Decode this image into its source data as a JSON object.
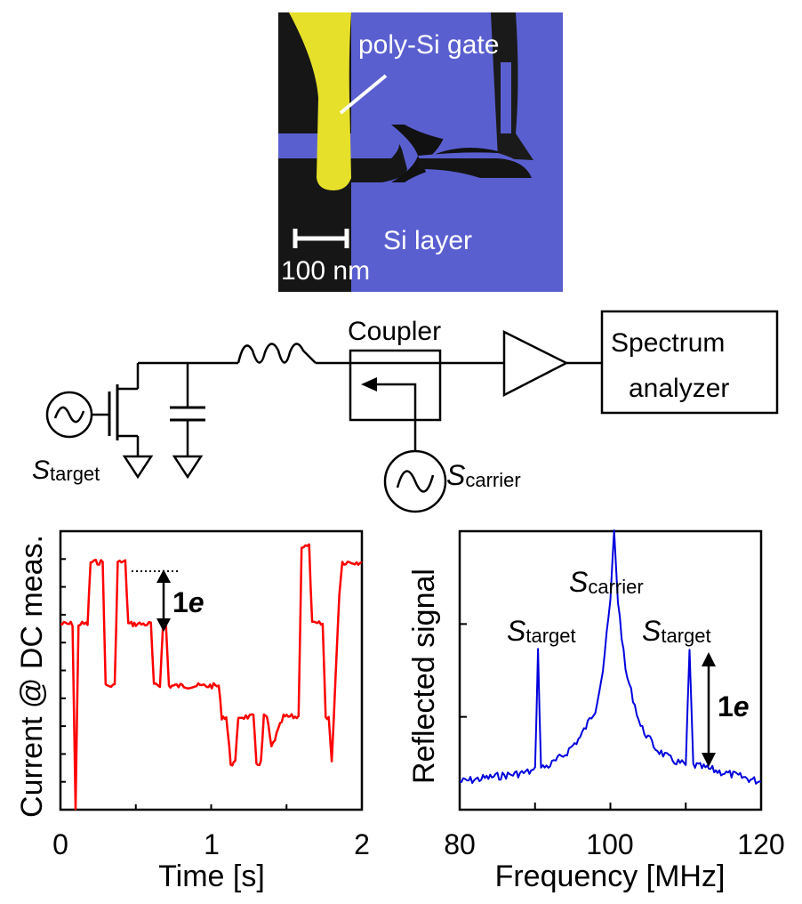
{
  "sem": {
    "gate_label": "poly-Si gate",
    "layer_label": "Si layer",
    "scale_label": "100 nm",
    "gate_color": "#e6e02a",
    "layer_color": "#5a5fd0"
  },
  "circuit": {
    "coupler_label": "Coupler",
    "analyzer_line1": "Spectrum",
    "analyzer_line2": "analyzer",
    "s_target": "S",
    "s_target_sub": "target",
    "s_carrier": "S",
    "s_carrier_sub": "carrier"
  },
  "left_plot": {
    "ylabel": "Current @ DC meas.",
    "xlabel": "Time [s]",
    "annotation": "1",
    "annotation_unit": "e",
    "line_color": "#ff0000"
  },
  "right_plot": {
    "ylabel": "Reflected signal",
    "xlabel": "Frequency [MHz]",
    "peak_carrier_label": "S",
    "peak_carrier_sub": "carrier",
    "peak_left_label": "S",
    "peak_left_sub": "target",
    "peak_right_label": "S",
    "peak_right_sub": "target",
    "annotation": "1",
    "annotation_unit": "e",
    "line_color": "#0000dd"
  },
  "chart_data": [
    {
      "type": "line",
      "title": "",
      "xlabel": "Time [s]",
      "ylabel": "Current @ DC meas.",
      "xlim": [
        0,
        2
      ],
      "xticks": [
        "0",
        "1",
        "2"
      ],
      "ylim": [
        0,
        9
      ],
      "series": [
        {
          "x": [
            0,
            0.08,
            0.1,
            0.12,
            0.18,
            0.2,
            0.28,
            0.3,
            0.36,
            0.38,
            0.43,
            0.45,
            0.48,
            0.5,
            0.6,
            0.62,
            0.66,
            0.68,
            0.7,
            0.72,
            0.74,
            0.76,
            0.95,
            0.97,
            1.05,
            1.07,
            1.1,
            1.13,
            1.16,
            1.18,
            1.28,
            1.3,
            1.33,
            1.35,
            1.37,
            1.4,
            1.48,
            1.5,
            1.58,
            1.6,
            1.65,
            1.67,
            1.74,
            1.76,
            1.78,
            1.8,
            1.85,
            1.87,
            2.0
          ],
          "y": [
            6,
            6,
            0,
            6,
            6,
            8,
            8,
            4,
            4,
            8,
            8,
            6,
            6,
            6,
            6,
            4,
            4,
            6,
            6,
            4,
            4,
            4,
            4,
            4,
            4,
            3,
            3,
            1.5,
            1.5,
            3,
            3,
            1.5,
            1.5,
            3,
            3,
            2,
            3,
            3,
            3,
            8.5,
            8.5,
            6,
            6,
            3,
            3,
            1.5,
            7,
            8,
            8
          ]
        }
      ],
      "annotations": [
        "1e"
      ]
    },
    {
      "type": "line",
      "title": "",
      "xlabel": "Frequency [MHz]",
      "ylabel": "Reflected signal",
      "xlim": [
        80,
        120
      ],
      "xticks": [
        "80",
        "100",
        "120"
      ],
      "ylim": [
        0,
        10
      ],
      "series": [
        {
          "x": [
            80,
            85,
            88,
            90,
            90.4,
            90.8,
            92,
            94,
            96,
            98,
            99,
            100,
            100.5,
            101,
            102,
            104,
            106,
            108,
            110,
            110.5,
            111,
            114,
            117,
            120
          ],
          "y": [
            1.0,
            1.2,
            1.3,
            1.4,
            5.7,
            1.5,
            1.6,
            2.0,
            2.6,
            3.6,
            5.0,
            7.5,
            10.0,
            7.5,
            5.0,
            3.0,
            2.2,
            1.8,
            1.6,
            5.7,
            1.6,
            1.4,
            1.2,
            1.0
          ]
        }
      ],
      "annotations": [
        "1e"
      ]
    }
  ]
}
